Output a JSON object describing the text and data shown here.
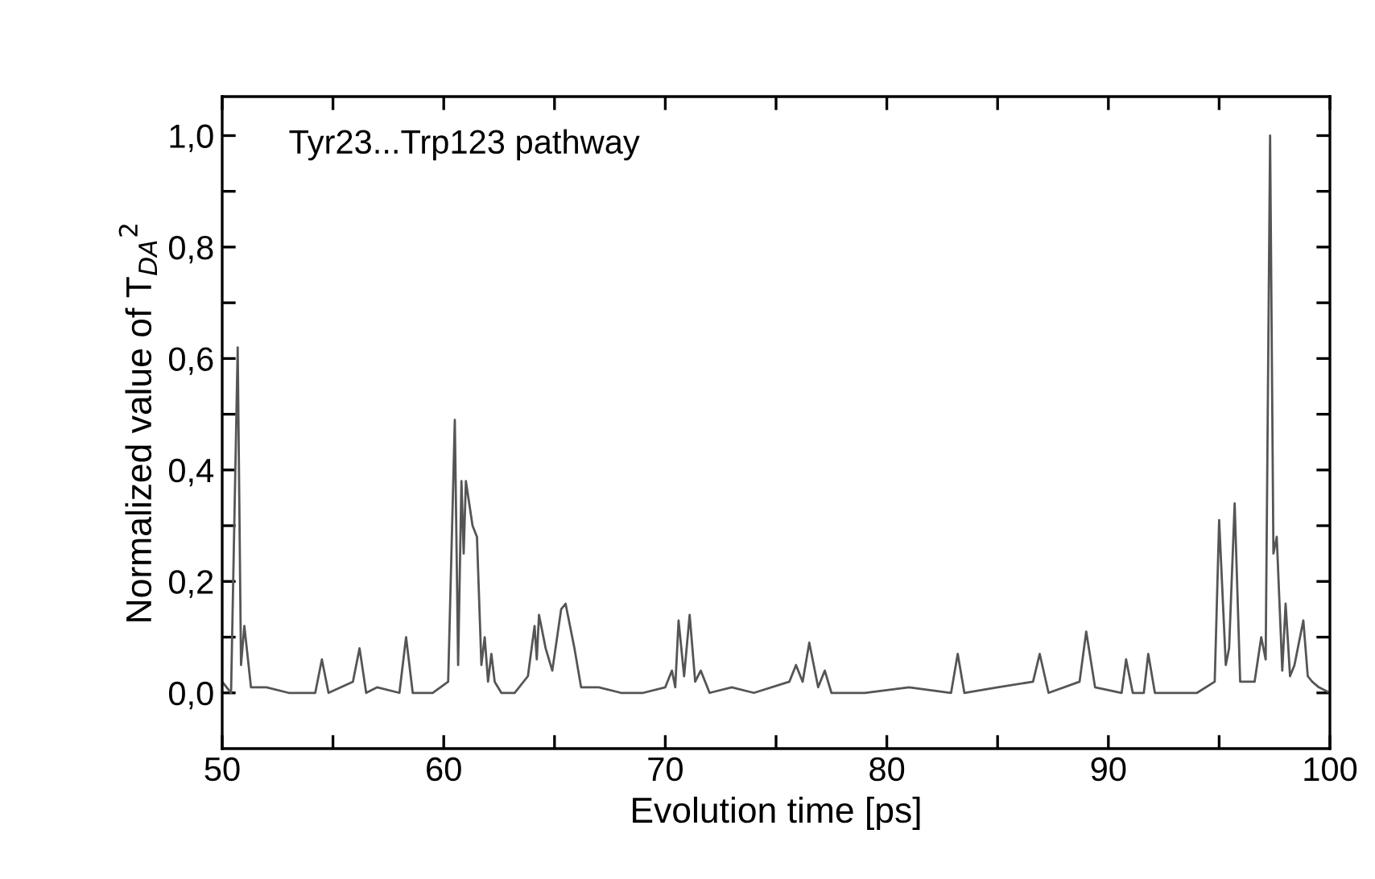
{
  "chart_data": {
    "type": "line",
    "xlabel": "Evolution time [ps]",
    "ylabel": "Normalized value of T$_{DA}$$^{2}$",
    "annotations": [
      "Tyr23...Trp123 pathway"
    ],
    "xlim": [
      50,
      100
    ],
    "ylim": [
      -0.1,
      1.07
    ],
    "xticks": [
      50,
      {
        "value": 55,
        "label": null
      },
      60,
      {
        "value": 65,
        "label": null
      },
      70,
      {
        "value": 75,
        "label": null
      },
      80,
      {
        "value": 85,
        "label": null
      },
      90,
      {
        "value": 95,
        "label": null
      },
      100
    ],
    "yticks": [
      {
        "value": 0,
        "label": "0,0"
      },
      {
        "value": 0.1,
        "label": null
      },
      {
        "value": 0.2,
        "label": "0,2"
      },
      {
        "value": 0.3,
        "label": null
      },
      {
        "value": 0.4,
        "label": "0,4"
      },
      {
        "value": 0.5,
        "label": null
      },
      {
        "value": 0.6,
        "label": "0,6"
      },
      {
        "value": 0.7,
        "label": null
      },
      {
        "value": 0.8,
        "label": "0,8"
      },
      {
        "value": 0.9,
        "label": null
      },
      {
        "value": 1.0,
        "label": "1,0"
      }
    ],
    "grid": false,
    "legend": false,
    "marker": "none",
    "line_style": "solid",
    "series": [
      {
        "color": "#555555",
        "x": [
          50.0,
          50.4,
          50.7,
          50.85,
          51.0,
          51.3,
          52.0,
          53.0,
          54.2,
          54.5,
          54.8,
          55.9,
          56.2,
          56.5,
          57.0,
          58.0,
          58.3,
          58.6,
          59.5,
          60.2,
          60.5,
          60.65,
          60.8,
          60.9,
          61.0,
          61.3,
          61.5,
          61.7,
          61.85,
          62.0,
          62.15,
          62.3,
          62.6,
          63.2,
          63.8,
          64.1,
          64.2,
          64.3,
          64.6,
          64.9,
          65.3,
          65.5,
          65.9,
          66.2,
          67.0,
          68.0,
          69.0,
          70.0,
          70.3,
          70.45,
          70.6,
          70.85,
          71.1,
          71.35,
          71.6,
          72.0,
          73.0,
          74.0,
          75.6,
          75.9,
          76.2,
          76.5,
          76.9,
          77.2,
          77.5,
          79.0,
          81.0,
          82.9,
          83.2,
          83.5,
          85.0,
          86.6,
          86.9,
          87.3,
          88.7,
          89.0,
          89.4,
          90.6,
          90.8,
          91.1,
          91.6,
          91.8,
          92.1,
          94.0,
          94.8,
          95.0,
          95.3,
          95.45,
          95.7,
          95.95,
          96.6,
          96.9,
          97.1,
          97.3,
          97.45,
          97.6,
          97.85,
          98.0,
          98.2,
          98.4,
          98.8,
          99.0,
          99.2,
          99.5,
          100.0
        ],
        "values": [
          0.02,
          0.0,
          0.62,
          0.05,
          0.12,
          0.01,
          0.01,
          0.0,
          0.0,
          0.06,
          0.0,
          0.02,
          0.08,
          0.0,
          0.01,
          0.0,
          0.1,
          0.0,
          0.0,
          0.02,
          0.49,
          0.05,
          0.38,
          0.25,
          0.38,
          0.3,
          0.28,
          0.05,
          0.1,
          0.02,
          0.07,
          0.02,
          0.0,
          0.0,
          0.03,
          0.12,
          0.06,
          0.14,
          0.08,
          0.04,
          0.15,
          0.16,
          0.08,
          0.01,
          0.01,
          0.0,
          0.0,
          0.01,
          0.04,
          0.01,
          0.13,
          0.03,
          0.14,
          0.02,
          0.04,
          0.0,
          0.01,
          0.0,
          0.02,
          0.05,
          0.02,
          0.09,
          0.01,
          0.04,
          0.0,
          0.0,
          0.01,
          0.0,
          0.07,
          0.0,
          0.01,
          0.02,
          0.07,
          0.0,
          0.02,
          0.11,
          0.01,
          0.0,
          0.06,
          0.0,
          0.0,
          0.07,
          0.0,
          0.0,
          0.02,
          0.31,
          0.05,
          0.08,
          0.34,
          0.02,
          0.02,
          0.1,
          0.06,
          1.0,
          0.25,
          0.28,
          0.04,
          0.16,
          0.03,
          0.05,
          0.13,
          0.03,
          0.02,
          0.01,
          0.0
        ]
      }
    ]
  }
}
